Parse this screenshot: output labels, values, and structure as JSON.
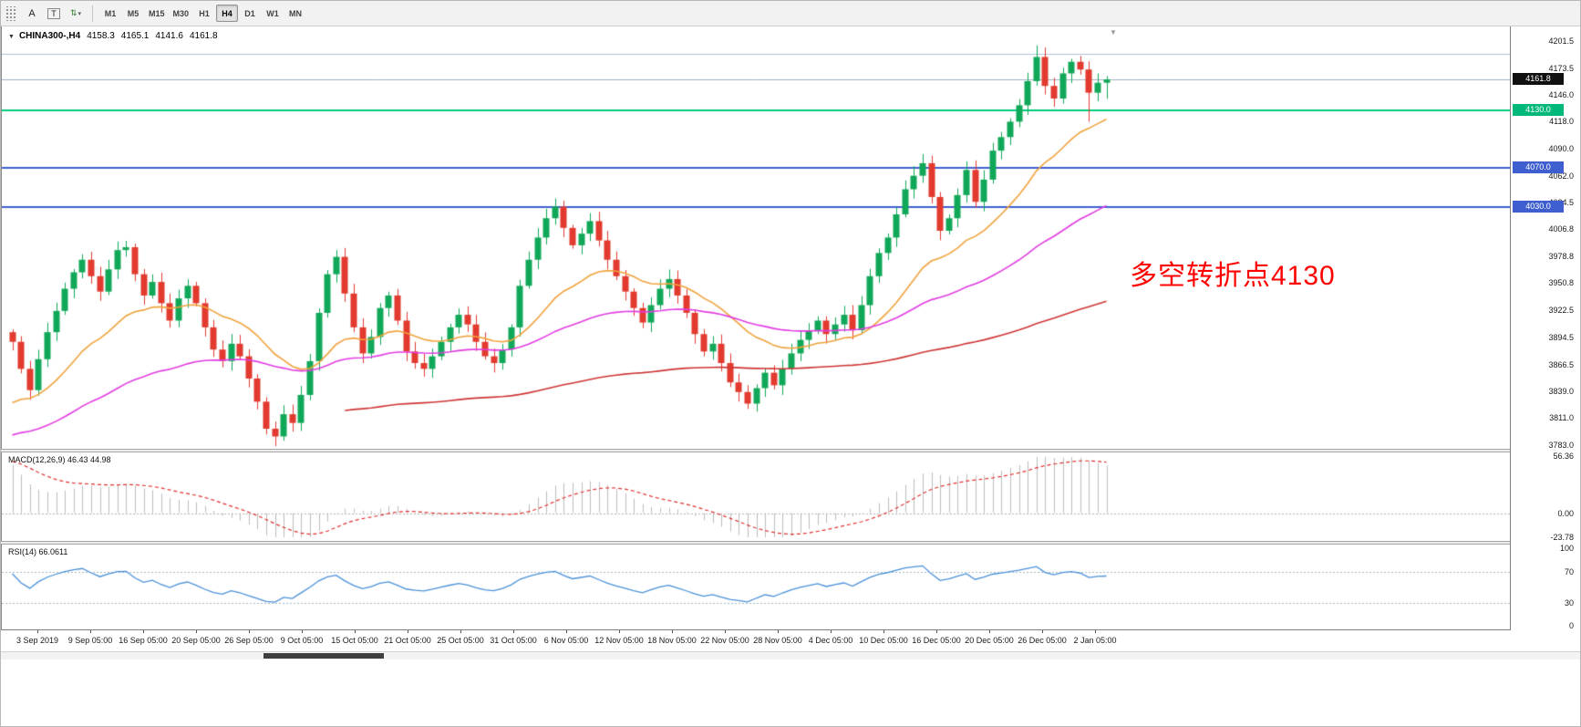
{
  "icons": {
    "grid": "grip-dots",
    "font": "A",
    "text": "T",
    "arrows": "⇅",
    "caret": "▾",
    "symbol_menu": "▼",
    "shift_marker": "▼"
  },
  "toolbar": {
    "timeframes": [
      "M1",
      "M5",
      "M15",
      "M30",
      "H1",
      "H4",
      "D1",
      "W1",
      "MN"
    ],
    "active_timeframe": "H4"
  },
  "header": {
    "symbol": "CHINA300-,H4",
    "open": "4158.3",
    "high": "4165.1",
    "low": "4141.6",
    "close": "4161.8"
  },
  "annotation": {
    "text": "多空转折点4130"
  },
  "price_axis": {
    "ticks": [
      "4201.5",
      "4173.5",
      "4146.0",
      "4118.0",
      "4090.0",
      "4062.0",
      "4034.5",
      "4006.8",
      "3978.8",
      "3950.8",
      "3922.5",
      "3894.5",
      "3866.5",
      "3839.0",
      "3811.0",
      "3783.0"
    ],
    "badges": [
      {
        "text": "4161.8",
        "price": 4161.8,
        "bg": "#101010"
      },
      {
        "text": "4130.0",
        "price": 4130.0,
        "bg": "#00b87a"
      },
      {
        "text": "4070.0",
        "price": 4070.0,
        "bg": "#3f5fd0"
      },
      {
        "text": "4030.0",
        "price": 4030.0,
        "bg": "#3f5fd0"
      }
    ]
  },
  "time_axis": {
    "labels": [
      "3 Sep 2019",
      "9 Sep 05:00",
      "16 Sep 05:00",
      "20 Sep 05:00",
      "26 Sep 05:00",
      "9 Oct 05:00",
      "15 Oct 05:00",
      "21 Oct 05:00",
      "25 Oct 05:00",
      "31 Oct 05:00",
      "6 Nov 05:00",
      "12 Nov 05:00",
      "18 Nov 05:00",
      "22 Nov 05:00",
      "28 Nov 05:00",
      "4 Dec 05:00",
      "10 Dec 05:00",
      "16 Dec 05:00",
      "20 Dec 05:00",
      "26 Dec 05:00",
      "2 Jan 05:00"
    ]
  },
  "chart_data": {
    "type": "candlestick",
    "symbol": "CHINA300-",
    "timeframe": "H4",
    "last_ohlc": {
      "open": 4158.3,
      "high": 4165.1,
      "low": 4141.6,
      "close": 4161.8
    },
    "y_range": {
      "top": 4201.5,
      "bottom": 3783.0
    },
    "first_open": 3900,
    "closes": [
      3890,
      3862,
      3840,
      3872,
      3900,
      3922,
      3945,
      3962,
      3975,
      3958,
      3942,
      3965,
      3985,
      3988,
      3960,
      3938,
      3952,
      3930,
      3912,
      3935,
      3948,
      3930,
      3905,
      3882,
      3870,
      3888,
      3875,
      3852,
      3828,
      3800,
      3792,
      3815,
      3806,
      3835,
      3870,
      3920,
      3960,
      3978,
      3940,
      3905,
      3878,
      3895,
      3925,
      3938,
      3912,
      3880,
      3868,
      3862,
      3875,
      3890,
      3905,
      3918,
      3908,
      3890,
      3875,
      3868,
      3882,
      3905,
      3948,
      3975,
      3998,
      4018,
      4030,
      4008,
      3990,
      4002,
      4015,
      3995,
      3975,
      3958,
      3942,
      3925,
      3910,
      3928,
      3945,
      3955,
      3938,
      3920,
      3898,
      3880,
      3888,
      3868,
      3848,
      3838,
      3826,
      3842,
      3858,
      3845,
      3862,
      3878,
      3892,
      3902,
      3912,
      3898,
      3908,
      3918,
      3902,
      3928,
      3958,
      3982,
      3998,
      4022,
      4048,
      4062,
      4075,
      4040,
      4005,
      4018,
      4042,
      4068,
      4035,
      4058,
      4088,
      4102,
      4118,
      4135,
      4160,
      4185,
      4155,
      4142,
      4168,
      4180,
      4172,
      4148,
      4158.3,
      4161.8
    ],
    "wick_overrides": [
      {
        "index": 117,
        "high": 4197.0
      },
      {
        "index": 123,
        "low": 4118.0
      },
      {
        "index": 125,
        "high": 4165.1,
        "low": 4141.6
      }
    ],
    "horizontal_lines": [
      {
        "price": 4188.0,
        "color": "#aebfd8",
        "width": 1
      },
      {
        "price": 4161.8,
        "color": "#9fb0c0",
        "width": 1
      },
      {
        "price": 4130.0,
        "color": "#00cc7a",
        "width": 2
      },
      {
        "price": 4070.0,
        "color": "#3f5fd0",
        "width": 2
      },
      {
        "price": 4030.0,
        "color": "#3f5fd0",
        "width": 2
      }
    ],
    "moving_averages": [
      {
        "name": "fast",
        "color": "#f0a23c",
        "alpha": 0.1,
        "seed": 3820,
        "start_index": 0
      },
      {
        "name": "medium",
        "color": "#e23ce2",
        "alpha": 0.035,
        "seed": 3790,
        "start_index": 0
      },
      {
        "name": "slow",
        "color": "#cf3535",
        "alpha": 0.012,
        "seed": 3768,
        "start_index": 38
      }
    ],
    "colors": {
      "bull": "#10a858",
      "bear": "#e23a2e"
    }
  },
  "panels": {
    "macd": {
      "label": "MACD(12,26,9) 46.43 44.98",
      "params": {
        "fast": 12,
        "slow": 26,
        "signal": 9
      },
      "values": {
        "macd": 46.43,
        "signal": 44.98
      },
      "scale": [
        {
          "text": "56.36",
          "value": 56.36
        },
        {
          "text": "0.00",
          "value": 0
        },
        {
          "text": "-23.78",
          "value": -23.78
        }
      ],
      "range": {
        "top": 56.36,
        "bottom": -23.78
      },
      "seeds": {
        "ema12": 3945,
        "ema26": 3889,
        "signal": 52
      },
      "colors": {
        "histogram": "#bcbcbc",
        "signal": "#e03030"
      }
    },
    "rsi": {
      "label": "RSI(14) 66.0611",
      "period": 14,
      "value": 66.0611,
      "scale": [
        {
          "text": "100",
          "value": 100
        },
        {
          "text": "70",
          "value": 70
        },
        {
          "text": "30",
          "value": 30
        },
        {
          "text": "0",
          "value": 0
        }
      ],
      "levels": [
        70,
        30
      ],
      "range": {
        "top": 100,
        "bottom": 0
      },
      "color": "#4a90d9"
    }
  }
}
